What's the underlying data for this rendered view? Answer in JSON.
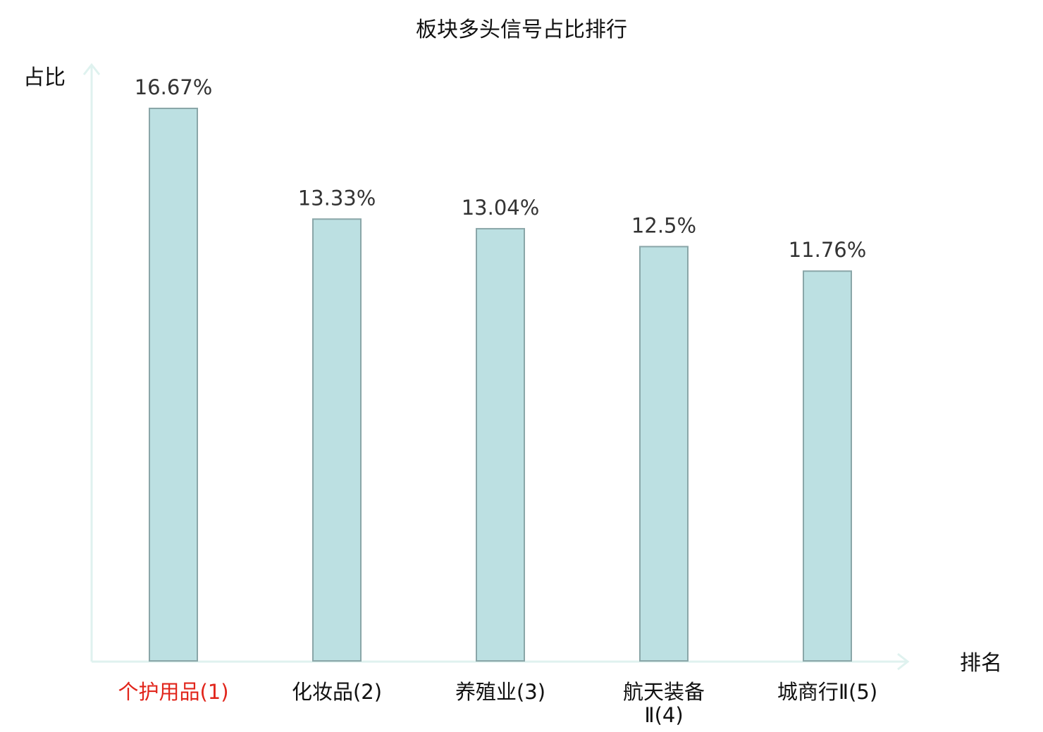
{
  "chart_data": {
    "type": "bar",
    "title": "板块多头信号占比排行",
    "ylabel": "占比",
    "xlabel": "排名",
    "categories": [
      "个护用品(1)",
      "化妆品(2)",
      "养殖业(3)",
      "航天装备Ⅱ(4)",
      "城商行Ⅱ(5)"
    ],
    "values": [
      16.67,
      13.33,
      13.04,
      12.5,
      11.76
    ],
    "value_labels": [
      "16.67%",
      "13.33%",
      "13.04%",
      "12.5%",
      "11.76%"
    ],
    "ylim": [
      0,
      16.67
    ],
    "grid": false,
    "highlight_index": 0,
    "colors": {
      "bar_fill": "#bce0e2",
      "bar_stroke": "#8aa6a8",
      "axis": "#dff2ef",
      "highlight_text": "#e1251b"
    }
  }
}
